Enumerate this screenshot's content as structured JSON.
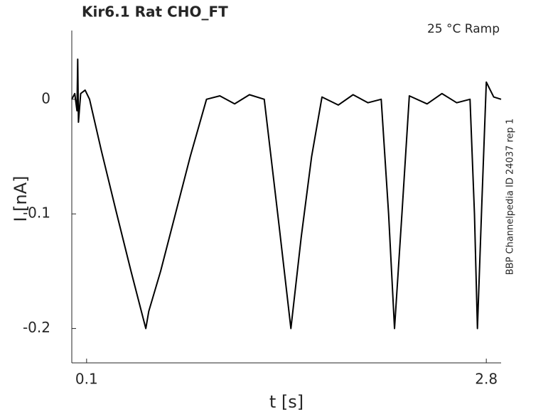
{
  "chart_data": {
    "type": "line",
    "title": "Kir6.1  Rat  CHO_FT",
    "subtitle": "25 °C  Ramp",
    "annotation": "BBP Channelpedia ID 24037 rep 1",
    "x_label": "t [s]",
    "y_label": "I [nA]",
    "x": [
      0,
      0.02,
      0.035,
      0.04,
      0.045,
      0.06,
      0.09,
      0.12,
      0.2,
      0.3,
      0.4,
      0.48,
      0.5,
      0.52,
      0.6,
      0.7,
      0.8,
      0.91,
      1.0,
      1.1,
      1.2,
      1.3,
      1.4,
      1.48,
      1.55,
      1.62,
      1.69,
      1.8,
      1.9,
      2.0,
      2.09,
      2.14,
      2.18,
      2.23,
      2.28,
      2.4,
      2.5,
      2.6,
      2.69,
      2.72,
      2.74,
      2.77,
      2.8,
      2.85,
      2.9
    ],
    "series": [
      {
        "color": "#000000",
        "values": [
          0,
          0.005,
          -0.01,
          0.035,
          -0.02,
          0.005,
          0.008,
          0,
          -0.045,
          -0.098,
          -0.15,
          -0.19,
          -0.2,
          -0.185,
          -0.15,
          -0.1,
          -0.05,
          0,
          0.003,
          -0.004,
          0.004,
          0,
          -0.11,
          -0.2,
          -0.12,
          -0.05,
          0.002,
          -0.005,
          0.004,
          -0.003,
          0,
          -0.1,
          -0.2,
          -0.1,
          0.003,
          -0.004,
          0.005,
          -0.003,
          0,
          -0.1,
          -0.2,
          -0.09,
          0.015,
          0.002,
          0
        ]
      }
    ],
    "xlim": [
      0,
      2.9
    ],
    "ylim": [
      -0.23,
      0.06
    ],
    "xticks": [
      0.1,
      2.8
    ],
    "yticks": [
      0,
      -0.1,
      -0.2
    ],
    "grid": false
  }
}
